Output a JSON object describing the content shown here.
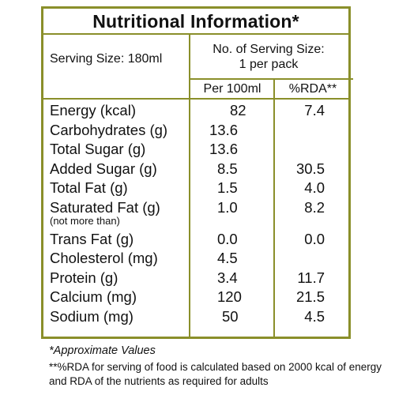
{
  "title": "Nutritional Information*",
  "serving": {
    "size": "Serving Size: 180ml",
    "count_line1": "No. of Serving Size:",
    "count_line2": "1 per pack"
  },
  "columns": {
    "per": "Per 100ml",
    "rda": "%RDA**"
  },
  "rows": [
    {
      "name": "Energy (kcal)",
      "per": "82",
      "rda": "7.4"
    },
    {
      "name": "Carbohydrates (g)",
      "per": "13.6",
      "rda": ""
    },
    {
      "name": "Total Sugar (g)",
      "per": "13.6",
      "rda": ""
    },
    {
      "name": "Added Sugar (g)",
      "per": "8.5",
      "rda": "30.5"
    },
    {
      "name": "Total Fat (g)",
      "per": "1.5",
      "rda": "4.0"
    },
    {
      "name": "Saturated Fat (g)",
      "sub": "(not more than)",
      "per": "1.0",
      "rda": "8.2"
    },
    {
      "name": "Trans Fat (g)",
      "per": "0.0",
      "rda": "0.0"
    },
    {
      "name": "Cholesterol (mg)",
      "per": "4.5",
      "rda": ""
    },
    {
      "name": "Protein (g)",
      "per": "3.4",
      "rda": "11.7"
    },
    {
      "name": "Calcium (mg)",
      "per": "120",
      "rda": "21.5"
    },
    {
      "name": "Sodium (mg)",
      "per": "50",
      "rda": "4.5"
    }
  ],
  "footnotes": {
    "approx": "*Approximate Values",
    "rda_note": "**%RDA for serving of food is calculated based on 2000 kcal of energy and RDA of the nutrients as required for adults"
  },
  "colors": {
    "border": "#8a8f2a",
    "text": "#111111"
  }
}
